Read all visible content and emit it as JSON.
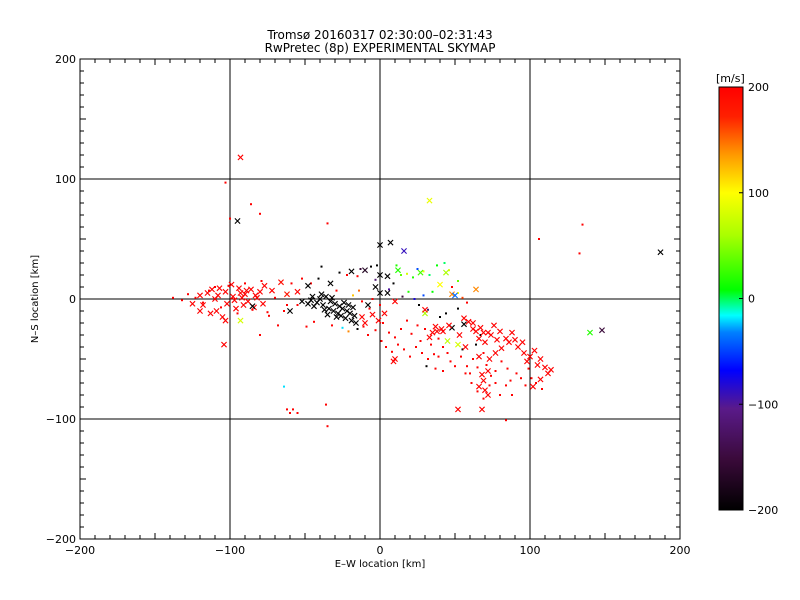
{
  "chart_data": {
    "type": "scatter",
    "title": "Tromsø 20160317 02:30:00–02:31:43",
    "subtitle": "RwPretec (8p) EXPERIMENTAL SKYMAP",
    "xlabel": "E–W location [km]",
    "ylabel": "N–S location [km]",
    "xlim": [
      -200,
      200
    ],
    "ylim": [
      -200,
      200
    ],
    "x_ticks": [
      "−200",
      "−100",
      "0",
      "100",
      "200"
    ],
    "y_ticks": [
      "−200",
      "−100",
      "0",
      "100",
      "200"
    ],
    "grid_x": [
      -100,
      0,
      100
    ],
    "grid_y": [
      -100,
      0,
      100
    ],
    "colorbar": {
      "label": "[m/s]",
      "min": -200,
      "max": 200,
      "ticks": [
        "200",
        "100",
        "0",
        "−100",
        "−200"
      ],
      "tick_values": [
        200,
        100,
        0,
        -100,
        -200
      ]
    },
    "points_x_marker": [
      [
        -93,
        118,
        200
      ],
      [
        -95,
        65,
        -200
      ],
      [
        33,
        82,
        90
      ],
      [
        187,
        39,
        -200
      ],
      [
        -112,
        8,
        200
      ],
      [
        -108,
        3,
        200
      ],
      [
        -103,
        6,
        200
      ],
      [
        -98,
        2,
        200
      ],
      [
        -94,
        9,
        200
      ],
      [
        -90,
        4,
        200
      ],
      [
        -86,
        8,
        200
      ],
      [
        -83,
        3,
        200
      ],
      [
        -80,
        6,
        200
      ],
      [
        -118,
        -5,
        200
      ],
      [
        -113,
        -12,
        200
      ],
      [
        -102,
        -4,
        200
      ],
      [
        -96,
        -8,
        200
      ],
      [
        -92,
        1,
        200
      ],
      [
        -88,
        -2,
        200
      ],
      [
        -110,
        0,
        200
      ],
      [
        -105,
        -15,
        200
      ],
      [
        -99,
        12,
        200
      ],
      [
        -91,
        -5,
        200
      ],
      [
        -84,
        -7,
        200
      ],
      [
        -77,
        11,
        200
      ],
      [
        -72,
        7,
        200
      ],
      [
        -66,
        14,
        190
      ],
      [
        -62,
        4,
        180
      ],
      [
        -125,
        -4,
        200
      ],
      [
        -120,
        3,
        200
      ],
      [
        -115,
        5,
        200
      ],
      [
        -107,
        9,
        200
      ],
      [
        -97,
        -1,
        200
      ],
      [
        -93,
        5,
        200
      ],
      [
        -89,
        7,
        200
      ],
      [
        -82,
        1,
        200
      ],
      [
        -78,
        -4,
        200
      ],
      [
        -109,
        -10,
        200
      ],
      [
        -103,
        -18,
        200
      ],
      [
        -120,
        -10,
        200
      ],
      [
        -104,
        -38,
        200
      ],
      [
        -93,
        -18,
        80
      ],
      [
        -85,
        -6,
        -200
      ],
      [
        -60,
        -10,
        -200
      ],
      [
        -55,
        6,
        200
      ],
      [
        -52,
        -2,
        -200
      ],
      [
        -45,
        2,
        -200
      ],
      [
        -42,
        -3,
        -200
      ],
      [
        -40,
        0,
        -200
      ],
      [
        -38,
        -5,
        -200
      ],
      [
        -36,
        2,
        -200
      ],
      [
        -34,
        -8,
        -200
      ],
      [
        -33,
        -2,
        -200
      ],
      [
        -31,
        -10,
        -200
      ],
      [
        -30,
        -4,
        -200
      ],
      [
        -28,
        -12,
        -200
      ],
      [
        -27,
        -6,
        -200
      ],
      [
        -26,
        -14,
        -200
      ],
      [
        -25,
        -8,
        -200
      ],
      [
        -24,
        -3,
        -200
      ],
      [
        -23,
        -16,
        -200
      ],
      [
        -22,
        -10,
        -200
      ],
      [
        -21,
        -5,
        -200
      ],
      [
        -20,
        -12,
        -200
      ],
      [
        -19,
        -18,
        -200
      ],
      [
        -18,
        -7,
        -200
      ],
      [
        -17,
        -14,
        -200
      ],
      [
        -16,
        -20,
        -200
      ],
      [
        -44,
        -6,
        -200
      ],
      [
        -46,
        -1,
        -200
      ],
      [
        -48,
        -4,
        -200
      ],
      [
        -39,
        4,
        -200
      ],
      [
        -37,
        -9,
        -200
      ],
      [
        -35,
        -13,
        -200
      ],
      [
        -32,
        1,
        -200
      ],
      [
        -29,
        -15,
        -200
      ],
      [
        -33,
        13,
        -200
      ],
      [
        -48,
        11,
        -200
      ],
      [
        -19,
        23,
        -200
      ],
      [
        -10,
        24,
        -170
      ],
      [
        0,
        45,
        -200
      ],
      [
        7,
        47,
        -200
      ],
      [
        0,
        20,
        -200
      ],
      [
        5,
        19,
        -200
      ],
      [
        12,
        24,
        20
      ],
      [
        16,
        40,
        -90
      ],
      [
        27,
        22,
        30
      ],
      [
        44,
        22,
        60
      ],
      [
        40,
        12,
        100
      ],
      [
        48,
        4,
        140
      ],
      [
        50,
        3,
        -40
      ],
      [
        64,
        8,
        140
      ],
      [
        -8,
        -5,
        -200
      ],
      [
        -5,
        -13,
        200
      ],
      [
        -1,
        -18,
        200
      ],
      [
        3,
        -12,
        200
      ],
      [
        -10,
        -20,
        200
      ],
      [
        -12,
        -15,
        200
      ],
      [
        30,
        -12,
        60
      ],
      [
        37,
        -23,
        200
      ],
      [
        42,
        -27,
        200
      ],
      [
        48,
        -24,
        -200
      ],
      [
        45,
        -35,
        70
      ],
      [
        52,
        -38,
        80
      ],
      [
        57,
        -40,
        200
      ],
      [
        53,
        -30,
        200
      ],
      [
        62,
        -20,
        200
      ],
      [
        67,
        -24,
        200
      ],
      [
        72,
        -28,
        200
      ],
      [
        76,
        -22,
        200
      ],
      [
        80,
        -27,
        200
      ],
      [
        84,
        -33,
        200
      ],
      [
        88,
        -28,
        200
      ],
      [
        74,
        -30,
        200
      ],
      [
        69,
        -28,
        200
      ],
      [
        78,
        -34,
        200
      ],
      [
        86,
        -36,
        200
      ],
      [
        92,
        -40,
        200
      ],
      [
        96,
        -45,
        200
      ],
      [
        100,
        -48,
        200
      ],
      [
        103,
        -43,
        200
      ],
      [
        98,
        -52,
        200
      ],
      [
        105,
        -55,
        200
      ],
      [
        107,
        -50,
        200
      ],
      [
        110,
        -57,
        200
      ],
      [
        112,
        -62,
        200
      ],
      [
        114,
        -59,
        200
      ],
      [
        107,
        -67,
        200
      ],
      [
        102,
        -73,
        200
      ],
      [
        95,
        -36,
        200
      ],
      [
        90,
        -34,
        200
      ],
      [
        81,
        -41,
        200
      ],
      [
        73,
        -50,
        200
      ],
      [
        72,
        -60,
        200
      ],
      [
        69,
        -68,
        200
      ],
      [
        66,
        -73,
        200
      ],
      [
        70,
        -76,
        200
      ],
      [
        72,
        -80,
        200
      ],
      [
        68,
        -63,
        200
      ],
      [
        66,
        -48,
        200
      ],
      [
        10,
        -50,
        200
      ],
      [
        9,
        -52,
        200
      ],
      [
        68,
        -92,
        200
      ],
      [
        52,
        -92,
        200
      ],
      [
        35,
        -28,
        200
      ],
      [
        33,
        -32,
        200
      ],
      [
        38,
        -27,
        200
      ],
      [
        41,
        -25,
        200
      ],
      [
        46,
        -22,
        200
      ],
      [
        56,
        -16,
        200
      ],
      [
        59,
        -19,
        200
      ],
      [
        62,
        -25,
        200
      ],
      [
        64,
        -27,
        200
      ],
      [
        66,
        -33,
        200
      ],
      [
        70,
        -36,
        200
      ],
      [
        77,
        -45,
        200
      ],
      [
        140,
        -28,
        20
      ],
      [
        148,
        -26,
        -150
      ],
      [
        56,
        -21,
        -200
      ],
      [
        30,
        -9,
        200
      ],
      [
        0,
        5,
        -200
      ],
      [
        -3,
        10,
        -200
      ],
      [
        5,
        5,
        -200
      ],
      [
        10,
        -2,
        200
      ]
    ],
    "points_small_marker": [
      [
        -103,
        97,
        200
      ],
      [
        -100,
        67,
        200
      ],
      [
        -86,
        79,
        200
      ],
      [
        -80,
        71,
        200
      ],
      [
        -35,
        63,
        200
      ],
      [
        106,
        50,
        200
      ],
      [
        135,
        62,
        200
      ],
      [
        133,
        38,
        200
      ],
      [
        -128,
        4,
        200
      ],
      [
        -123,
        1,
        200
      ],
      [
        -118,
        -3,
        200
      ],
      [
        -114,
        7,
        200
      ],
      [
        -110,
        10,
        200
      ],
      [
        -106,
        -7,
        200
      ],
      [
        -101,
        11,
        200
      ],
      [
        -95,
        -12,
        200
      ],
      [
        -90,
        13,
        200
      ],
      [
        -85,
        -9,
        200
      ],
      [
        -79,
        15,
        200
      ],
      [
        -75,
        -11,
        200
      ],
      [
        -70,
        1,
        200
      ],
      [
        -64,
        -10,
        200
      ],
      [
        -59,
        13,
        200
      ],
      [
        -55,
        -5,
        200
      ],
      [
        -138,
        1,
        200
      ],
      [
        -132,
        -1,
        200
      ],
      [
        -52,
        17,
        200
      ],
      [
        -46,
        13,
        200
      ],
      [
        -41,
        17,
        -200
      ],
      [
        -39,
        27,
        -200
      ],
      [
        -27,
        22,
        -200
      ],
      [
        -22,
        20,
        200
      ],
      [
        -15,
        19,
        200
      ],
      [
        -13,
        25,
        -150
      ],
      [
        -6,
        27,
        -200
      ],
      [
        -2,
        28,
        -200
      ],
      [
        11,
        28,
        20
      ],
      [
        14,
        20,
        40
      ],
      [
        18,
        21,
        80
      ],
      [
        22,
        18,
        20
      ],
      [
        25,
        25,
        -50
      ],
      [
        29,
        23,
        90
      ],
      [
        33,
        20,
        0
      ],
      [
        38,
        28,
        10
      ],
      [
        43,
        30,
        0
      ],
      [
        46,
        24,
        80
      ],
      [
        52,
        15,
        40
      ],
      [
        -5,
        0,
        200
      ],
      [
        0,
        -5,
        200
      ],
      [
        2,
        -20,
        200
      ],
      [
        6,
        -28,
        200
      ],
      [
        10,
        -32,
        200
      ],
      [
        14,
        -25,
        200
      ],
      [
        18,
        -18,
        200
      ],
      [
        21,
        -29,
        200
      ],
      [
        25,
        -22,
        200
      ],
      [
        27,
        -35,
        200
      ],
      [
        30,
        -25,
        200
      ],
      [
        34,
        -38,
        200
      ],
      [
        39,
        -33,
        200
      ],
      [
        42,
        -40,
        200
      ],
      [
        45,
        -45,
        200
      ],
      [
        47,
        -52,
        200
      ],
      [
        50,
        -56,
        200
      ],
      [
        54,
        -48,
        200
      ],
      [
        58,
        -56,
        200
      ],
      [
        60,
        -62,
        200
      ],
      [
        62,
        -50,
        200
      ],
      [
        65,
        -57,
        200
      ],
      [
        69,
        -45,
        200
      ],
      [
        71,
        -55,
        200
      ],
      [
        74,
        -64,
        200
      ],
      [
        77,
        -60,
        200
      ],
      [
        81,
        -52,
        200
      ],
      [
        85,
        -58,
        200
      ],
      [
        87,
        -68,
        200
      ],
      [
        91,
        -62,
        200
      ],
      [
        94,
        -66,
        200
      ],
      [
        97,
        -72,
        200
      ],
      [
        99,
        -58,
        200
      ],
      [
        101,
        -66,
        200
      ],
      [
        104,
        -70,
        200
      ],
      [
        108,
        -75,
        200
      ],
      [
        84,
        -72,
        200
      ],
      [
        80,
        -80,
        200
      ],
      [
        88,
        -80,
        200
      ],
      [
        55,
        -42,
        -200
      ],
      [
        64,
        -38,
        -200
      ],
      [
        67,
        -30,
        -200
      ],
      [
        40,
        -15,
        -200
      ],
      [
        44,
        -12,
        -200
      ],
      [
        52,
        -8,
        -200
      ],
      [
        48,
        10,
        200
      ],
      [
        52,
        5,
        100
      ],
      [
        55,
        1,
        160
      ],
      [
        58,
        -3,
        200
      ],
      [
        -62,
        -92,
        200
      ],
      [
        -58,
        -92,
        200
      ],
      [
        -55,
        -95,
        200
      ],
      [
        -60,
        -95,
        200
      ],
      [
        -36,
        -88,
        200
      ],
      [
        -35,
        -106,
        200
      ],
      [
        -64,
        -73,
        -20
      ],
      [
        84,
        -101,
        200
      ],
      [
        -80,
        -30,
        200
      ],
      [
        -74,
        -14,
        200
      ],
      [
        -68,
        -22,
        200
      ],
      [
        -62,
        -5,
        200
      ],
      [
        -49,
        -23,
        200
      ],
      [
        -44,
        -19,
        200
      ],
      [
        -32,
        -22,
        200
      ],
      [
        -29,
        7,
        200
      ],
      [
        -18,
        3,
        120
      ],
      [
        -14,
        7,
        150
      ],
      [
        -12,
        -2,
        200
      ],
      [
        -7,
        -8,
        200
      ],
      [
        -3,
        16,
        -120
      ],
      [
        6,
        8,
        -100
      ],
      [
        9,
        13,
        -200
      ],
      [
        15,
        2,
        -150
      ],
      [
        19,
        6,
        20
      ],
      [
        23,
        0,
        -80
      ],
      [
        26,
        -5,
        -200
      ],
      [
        29,
        3,
        -50
      ],
      [
        32,
        -9,
        -120
      ],
      [
        35,
        6,
        10
      ],
      [
        -25,
        -24,
        -20
      ],
      [
        -21,
        -27,
        140
      ],
      [
        -15,
        -25,
        -200
      ],
      [
        -11,
        -23,
        200
      ],
      [
        -8,
        -30,
        200
      ],
      [
        -3,
        -26,
        200
      ],
      [
        1,
        -35,
        200
      ],
      [
        4,
        -40,
        200
      ],
      [
        8,
        -44,
        200
      ],
      [
        12,
        -38,
        200
      ],
      [
        16,
        -42,
        200
      ],
      [
        20,
        -48,
        200
      ],
      [
        24,
        -40,
        200
      ],
      [
        28,
        -45,
        200
      ],
      [
        32,
        -50,
        200
      ],
      [
        36,
        -46,
        200
      ],
      [
        31,
        -56,
        -200
      ],
      [
        37,
        -58,
        200
      ],
      [
        39,
        -48,
        200
      ],
      [
        42,
        -60,
        200
      ],
      [
        57,
        -62,
        200
      ],
      [
        61,
        -70,
        200
      ],
      [
        65,
        -77,
        200
      ],
      [
        69,
        -83,
        200
      ],
      [
        73,
        -72,
        200
      ],
      [
        77,
        -70,
        200
      ]
    ]
  }
}
